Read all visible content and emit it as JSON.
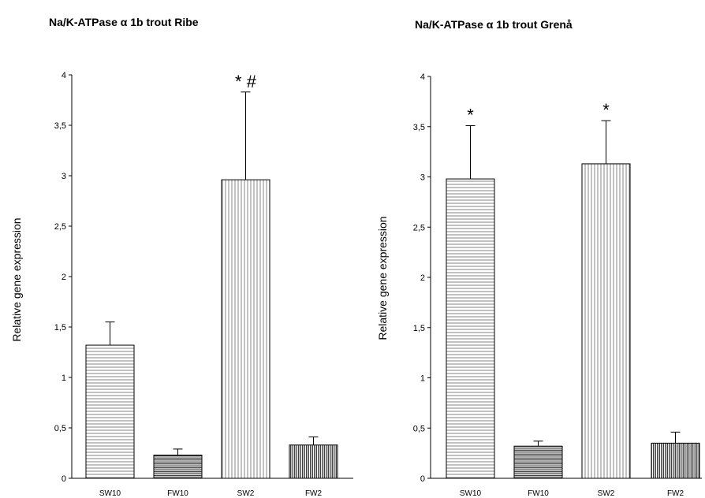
{
  "chart_data": [
    {
      "type": "bar",
      "title": "Na/K-ATPase α 1b trout Ribe",
      "ylabel": "Relative gene expression",
      "categories": [
        "SW10",
        "FW10",
        "SW2",
        "FW2"
      ],
      "values": [
        1.32,
        0.23,
        2.96,
        0.33
      ],
      "errors": [
        0.23,
        0.06,
        0.87,
        0.08
      ],
      "annotations": [
        "",
        "",
        "* #",
        ""
      ],
      "patterns": [
        "horizontal",
        "horizontal-dense",
        "vertical",
        "vertical-dense"
      ],
      "ylim": [
        0,
        4
      ],
      "yticks": [
        "0",
        "0,5",
        "1",
        "1,5",
        "2",
        "2,5",
        "3",
        "3,5",
        "4"
      ],
      "grid": false
    },
    {
      "type": "bar",
      "title": "Na/K-ATPase α 1b trout Grenå",
      "ylabel": "Relative gene expression",
      "categories": [
        "SW10",
        "FW10",
        "SW2",
        "FW2"
      ],
      "values": [
        2.98,
        0.32,
        3.13,
        0.35
      ],
      "errors": [
        0.53,
        0.05,
        0.43,
        0.11
      ],
      "annotations": [
        "*",
        "",
        "*",
        ""
      ],
      "patterns": [
        "horizontal",
        "horizontal-dense",
        "vertical",
        "vertical-dense"
      ],
      "ylim": [
        0,
        4
      ],
      "yticks": [
        "0",
        "0,5",
        "1",
        "1,5",
        "2",
        "2,5",
        "3",
        "3,5",
        "4"
      ],
      "grid": false
    }
  ]
}
